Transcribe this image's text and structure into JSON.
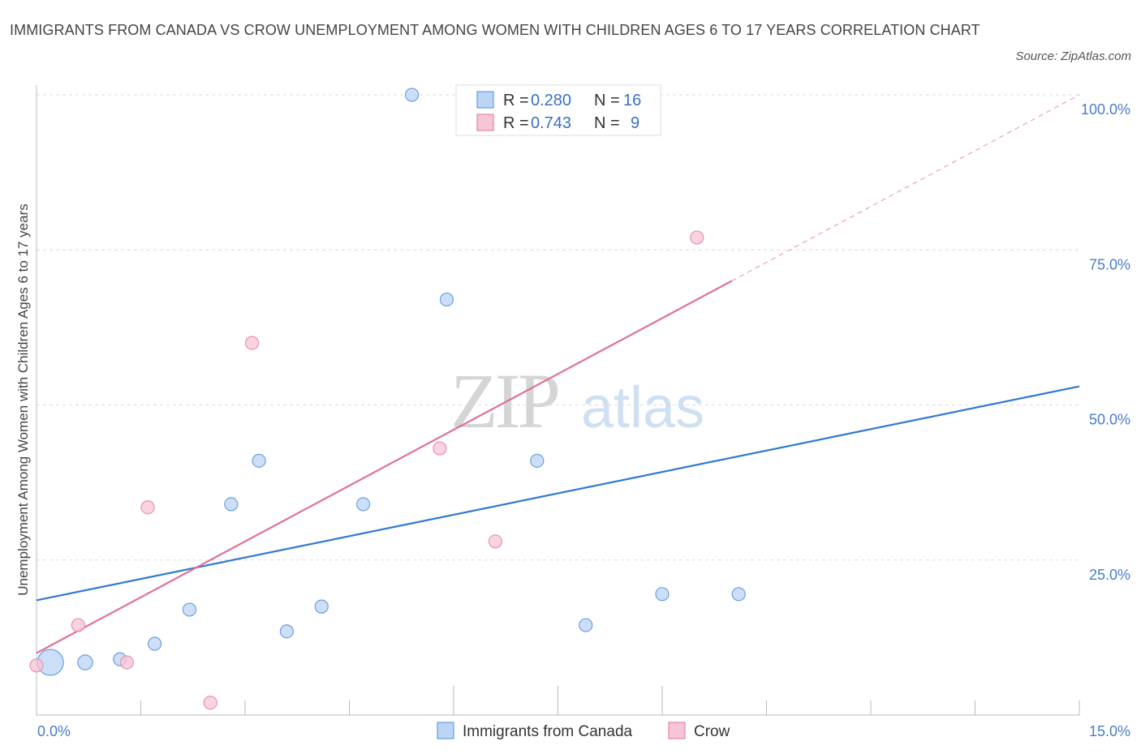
{
  "header": {
    "title": "IMMIGRANTS FROM CANADA VS CROW UNEMPLOYMENT AMONG WOMEN WITH CHILDREN AGES 6 TO 17 YEARS CORRELATION CHART",
    "source": "Source: ZipAtlas.com"
  },
  "colors": {
    "blue": "#4a90d9",
    "blue_fill": "#bcd4f5",
    "pink": "#e07098",
    "pink_fill": "#f7c6d6",
    "value_text": "#3a6fc4"
  },
  "watermark": {
    "zip": "ZIP",
    "atlas": "atlas"
  },
  "legend": {
    "rows": [
      {
        "r_label": "R =",
        "r_value": "0.280",
        "n_label": "N =",
        "n_value": "16"
      },
      {
        "r_label": "R =",
        "r_value": "0.743",
        "n_label": "N =",
        "n_value": "9"
      }
    ]
  },
  "chart_data": {
    "type": "scatter",
    "title": "IMMIGRANTS FROM CANADA VS CROW UNEMPLOYMENT AMONG WOMEN WITH CHILDREN AGES 6 TO 17 YEARS CORRELATION CHART",
    "ylabel": "Unemployment Among Women with Children Ages 6 to 17 years",
    "xlabel": "",
    "xlim": [
      0,
      15
    ],
    "ylim": [
      0,
      100
    ],
    "x_tick_labels": [
      "0.0%",
      "15.0%"
    ],
    "y_ticks": [
      25,
      50,
      75,
      100
    ],
    "y_tick_labels": [
      "25.0%",
      "50.0%",
      "75.0%",
      "100.0%"
    ],
    "grid": true,
    "legend_position": "top-center",
    "series": [
      {
        "name": "Immigrants from Canada",
        "color": "#4a90d9",
        "r": 0.28,
        "n": 16,
        "points": [
          [
            0.2,
            8.5
          ],
          [
            0.7,
            8.5
          ],
          [
            1.2,
            9.0
          ],
          [
            1.7,
            11.5
          ],
          [
            2.2,
            17.0
          ],
          [
            2.8,
            34.0
          ],
          [
            3.2,
            41.0
          ],
          [
            3.6,
            13.5
          ],
          [
            4.1,
            17.5
          ],
          [
            4.7,
            34.0
          ],
          [
            5.4,
            100.0
          ],
          [
            5.9,
            67.0
          ],
          [
            7.2,
            41.0
          ],
          [
            7.9,
            14.5
          ],
          [
            9.0,
            19.5
          ],
          [
            10.1,
            19.5
          ]
        ],
        "point_weights": [
          4,
          1.3,
          1,
          1,
          1,
          1,
          1,
          1,
          1,
          1,
          1,
          1,
          1,
          1,
          1,
          1
        ],
        "trend": {
          "x": [
            0,
            15
          ],
          "y": [
            18.5,
            53.0
          ]
        }
      },
      {
        "name": "Crow",
        "color": "#e07098",
        "r": 0.743,
        "n": 9,
        "points": [
          [
            0.0,
            8.0
          ],
          [
            0.6,
            14.5
          ],
          [
            1.3,
            8.5
          ],
          [
            1.6,
            33.5
          ],
          [
            2.5,
            2.0
          ],
          [
            3.1,
            60.0
          ],
          [
            5.8,
            43.0
          ],
          [
            6.6,
            28.0
          ],
          [
            9.5,
            77.0
          ]
        ],
        "trend": {
          "x": [
            0,
            10
          ],
          "y": [
            10.0,
            70.0
          ]
        },
        "trend_extension": {
          "x": [
            10,
            15
          ],
          "y": [
            70.0,
            100.0
          ]
        }
      }
    ]
  }
}
